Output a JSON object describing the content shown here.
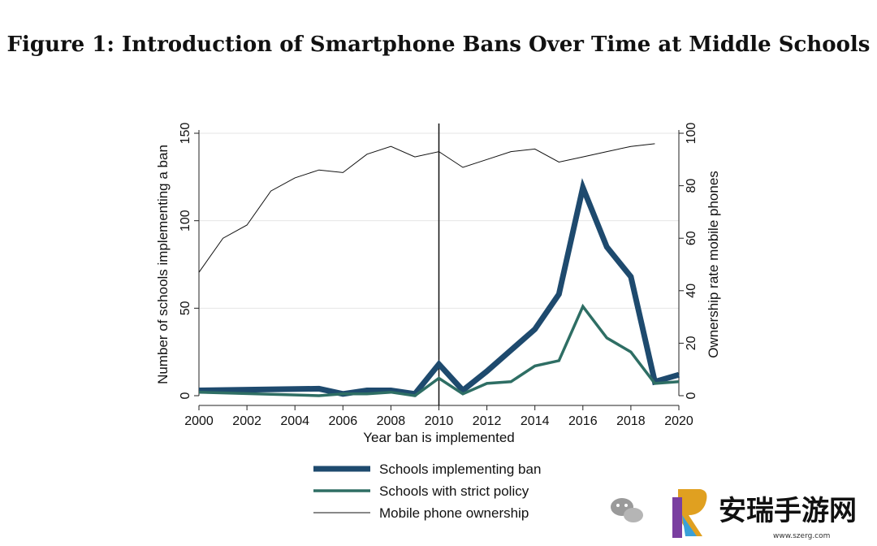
{
  "figure": {
    "title": "Figure 1: Introduction of Smartphone Bans Over Time at Middle Schools"
  },
  "chart_data": {
    "type": "line",
    "title": "",
    "xlabel": "Year ban is implemented",
    "ylabel": "Number of schools implementing a ban",
    "y2label": "Ownership rate mobile phones",
    "xlim": [
      2000,
      2020
    ],
    "ylim": [
      0,
      150
    ],
    "y2lim": [
      0,
      100
    ],
    "x_ticks": [
      2000,
      2002,
      2004,
      2006,
      2008,
      2010,
      2012,
      2014,
      2016,
      2018,
      2020
    ],
    "y_ticks": [
      0,
      50,
      100,
      150
    ],
    "y2_ticks": [
      0,
      20,
      40,
      60,
      80,
      100
    ],
    "vertical_line_x": 2010,
    "grid": "horizontal",
    "legend_position": "bottom",
    "series": [
      {
        "name": "Schools implementing ban",
        "axis": "left",
        "color": "#1e4a6e",
        "x": [
          2000,
          2005,
          2006,
          2007,
          2008,
          2009,
          2010,
          2011,
          2012,
          2013,
          2014,
          2015,
          2016,
          2017,
          2018,
          2019,
          2020
        ],
        "values": [
          3,
          4,
          1,
          3,
          3,
          1,
          18,
          3,
          14,
          26,
          38,
          58,
          119,
          85,
          68,
          8,
          12
        ]
      },
      {
        "name": "Schools with strict policy",
        "axis": "left",
        "color": "#2e6e64",
        "x": [
          2000,
          2005,
          2006,
          2007,
          2008,
          2009,
          2010,
          2011,
          2012,
          2013,
          2014,
          2015,
          2016,
          2017,
          2018,
          2019,
          2020
        ],
        "values": [
          2,
          0,
          1,
          1,
          2,
          0,
          10,
          1,
          7,
          8,
          17,
          20,
          51,
          33,
          25,
          7,
          8
        ]
      },
      {
        "name": "Mobile phone ownership",
        "axis": "right",
        "color": "#111111",
        "x": [
          2000,
          2001,
          2002,
          2003,
          2004,
          2005,
          2006,
          2007,
          2008,
          2009,
          2010,
          2011,
          2012,
          2013,
          2014,
          2015,
          2016,
          2017,
          2018,
          2019
        ],
        "values": [
          47,
          60,
          65,
          78,
          83,
          86,
          85,
          92,
          95,
          91,
          93,
          87,
          90,
          93,
          94,
          89,
          91,
          93,
          95,
          96
        ]
      }
    ]
  },
  "watermark": {
    "text": "安瑞手游网",
    "url": "www.szerg.com"
  }
}
